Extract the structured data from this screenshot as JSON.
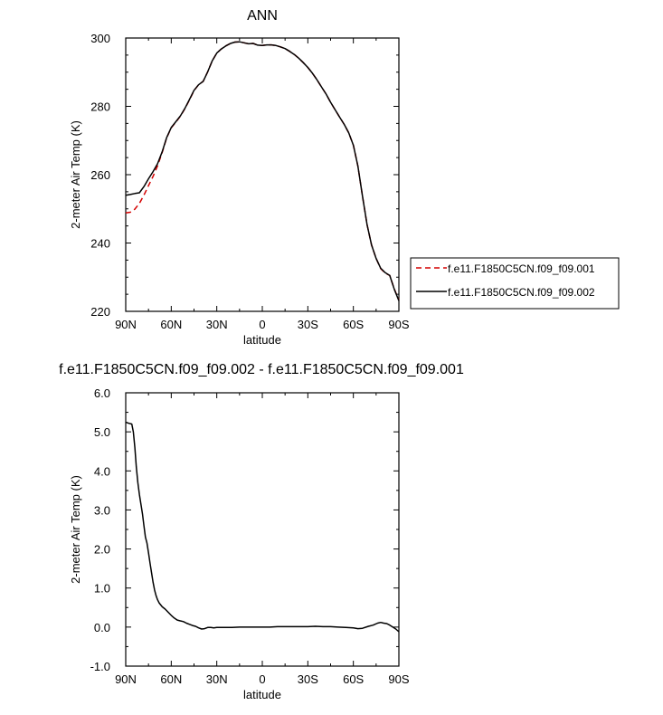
{
  "chart_data": [
    {
      "type": "line",
      "title": "ANN",
      "xlabel": "latitude",
      "ylabel": "2-meter Air Temp (K)",
      "xlim": [
        90,
        -90
      ],
      "ylim": [
        220,
        300
      ],
      "xticks": [
        {
          "value": 90,
          "label": "90N"
        },
        {
          "value": 60,
          "label": "60N"
        },
        {
          "value": 30,
          "label": "30N"
        },
        {
          "value": 0,
          "label": "0"
        },
        {
          "value": -30,
          "label": "30S"
        },
        {
          "value": -60,
          "label": "60S"
        },
        {
          "value": -90,
          "label": "90S"
        }
      ],
      "yticks": [
        {
          "value": 220,
          "label": "220"
        },
        {
          "value": 240,
          "label": "240"
        },
        {
          "value": 260,
          "label": "260"
        },
        {
          "value": 280,
          "label": "280"
        },
        {
          "value": 300,
          "label": "300"
        }
      ],
      "legend": "right",
      "series": [
        {
          "name": "f.e11.F1850C5CN.f09_f09.001",
          "color": "#d40000",
          "dash": "dashed",
          "x": [
            90,
            87,
            84,
            81,
            78,
            75,
            72,
            69,
            66,
            63,
            60,
            57,
            54,
            51,
            48,
            45,
            42,
            39,
            36,
            33,
            30,
            27,
            24,
            21,
            18,
            15,
            12,
            9,
            6,
            3,
            0,
            -3,
            -6,
            -9,
            -12,
            -15,
            -18,
            -21,
            -24,
            -27,
            -30,
            -33,
            -36,
            -39,
            -42,
            -45,
            -48,
            -51,
            -54,
            -57,
            -60,
            -63,
            -66,
            -69,
            -72,
            -75,
            -78,
            -81,
            -84,
            -87,
            -90
          ],
          "y": [
            248.8,
            249.0,
            249.9,
            251.6,
            254.0,
            256.8,
            259.5,
            262.6,
            266.5,
            270.8,
            273.7,
            275.4,
            277.1,
            279.3,
            281.9,
            284.6,
            286.3,
            287.3,
            290.1,
            293.3,
            295.6,
            296.8,
            297.7,
            298.4,
            298.8,
            298.9,
            298.6,
            298.3,
            298.4,
            297.9,
            297.8,
            298.0,
            298.0,
            297.8,
            297.4,
            296.9,
            296.1,
            295.2,
            294.1,
            292.8,
            291.4,
            289.7,
            287.8,
            285.7,
            283.6,
            281.2,
            279.0,
            276.8,
            274.7,
            272.2,
            268.6,
            262.5,
            253.8,
            245.4,
            239.4,
            235.5,
            232.5,
            231.2,
            230.5,
            226.5,
            223.3
          ]
        },
        {
          "name": "f.e11.F1850C5CN.f09_f09.002",
          "color": "#000000",
          "dash": "solid",
          "x": [
            90,
            87,
            84,
            81,
            78,
            75,
            72,
            69,
            66,
            63,
            60,
            57,
            54,
            51,
            48,
            45,
            42,
            39,
            36,
            33,
            30,
            27,
            24,
            21,
            18,
            15,
            12,
            9,
            6,
            3,
            0,
            -3,
            -6,
            -9,
            -12,
            -15,
            -18,
            -21,
            -24,
            -27,
            -30,
            -33,
            -36,
            -39,
            -42,
            -45,
            -48,
            -51,
            -54,
            -57,
            -60,
            -63,
            -66,
            -69,
            -72,
            -75,
            -78,
            -81,
            -84,
            -87,
            -90
          ],
          "y": [
            254.0,
            254.2,
            254.5,
            254.7,
            256.5,
            258.8,
            260.9,
            263.2,
            266.7,
            270.9,
            273.8,
            275.5,
            277.2,
            279.4,
            282.0,
            284.7,
            286.3,
            287.3,
            290.1,
            293.3,
            295.6,
            296.8,
            297.7,
            298.4,
            298.8,
            298.9,
            298.6,
            298.3,
            298.4,
            297.9,
            297.8,
            298.0,
            298.0,
            297.8,
            297.4,
            296.9,
            296.1,
            295.2,
            294.1,
            292.8,
            291.4,
            289.7,
            287.8,
            285.7,
            283.6,
            281.2,
            279.0,
            276.8,
            274.7,
            272.2,
            268.6,
            262.5,
            253.8,
            245.4,
            239.4,
            235.5,
            232.6,
            231.3,
            230.5,
            226.4,
            223.1
          ]
        }
      ]
    },
    {
      "type": "line",
      "title": "f.e11.F1850C5CN.f09_f09.002 - f.e11.F1850C5CN.f09_f09.001",
      "xlabel": "latitude",
      "ylabel": "2-meter Air Temp (K)",
      "xlim": [
        90,
        -90
      ],
      "ylim": [
        -1.0,
        6.0
      ],
      "xticks": [
        {
          "value": 90,
          "label": "90N"
        },
        {
          "value": 60,
          "label": "60N"
        },
        {
          "value": 30,
          "label": "30N"
        },
        {
          "value": 0,
          "label": "0"
        },
        {
          "value": -30,
          "label": "30S"
        },
        {
          "value": -60,
          "label": "60S"
        },
        {
          "value": -90,
          "label": "90S"
        }
      ],
      "yticks": [
        {
          "value": -1.0,
          "label": "-1.0"
        },
        {
          "value": 0.0,
          "label": "0.0"
        },
        {
          "value": 1.0,
          "label": "1.0"
        },
        {
          "value": 2.0,
          "label": "2.0"
        },
        {
          "value": 3.0,
          "label": "3.0"
        },
        {
          "value": 4.0,
          "label": "4.0"
        },
        {
          "value": 5.0,
          "label": "5.0"
        },
        {
          "value": 6.0,
          "label": "6.0"
        }
      ],
      "series": [
        {
          "color": "#000000",
          "dash": "solid",
          "x": [
            90,
            88,
            86,
            85,
            84,
            83,
            82,
            81,
            80,
            79,
            78,
            77,
            76,
            75,
            74,
            73,
            72,
            71,
            70,
            69,
            68,
            66,
            64,
            62,
            60,
            58,
            56,
            54,
            52,
            50,
            48,
            46,
            44,
            42,
            40,
            38,
            36,
            34,
            32,
            30,
            25,
            20,
            15,
            10,
            5,
            0,
            -5,
            -10,
            -15,
            -20,
            -25,
            -30,
            -35,
            -40,
            -45,
            -50,
            -55,
            -60,
            -63,
            -66,
            -70,
            -73,
            -76,
            -78,
            -80,
            -82,
            -84,
            -86,
            -88,
            -90
          ],
          "y": [
            5.25,
            5.22,
            5.2,
            5.0,
            4.6,
            4.1,
            3.7,
            3.4,
            3.15,
            2.9,
            2.6,
            2.3,
            2.15,
            1.9,
            1.65,
            1.4,
            1.15,
            0.95,
            0.8,
            0.7,
            0.62,
            0.52,
            0.46,
            0.38,
            0.3,
            0.23,
            0.18,
            0.16,
            0.14,
            0.1,
            0.07,
            0.04,
            0.02,
            -0.02,
            -0.05,
            -0.04,
            -0.01,
            -0.01,
            -0.02,
            -0.01,
            -0.01,
            -0.01,
            0.0,
            0.0,
            0.0,
            0.0,
            0.0,
            0.01,
            0.01,
            0.01,
            0.01,
            0.01,
            0.02,
            0.01,
            0.01,
            0.0,
            -0.01,
            -0.02,
            -0.04,
            -0.03,
            0.02,
            0.05,
            0.1,
            0.12,
            0.1,
            0.09,
            0.05,
            0.0,
            -0.05,
            -0.12
          ]
        }
      ]
    }
  ]
}
